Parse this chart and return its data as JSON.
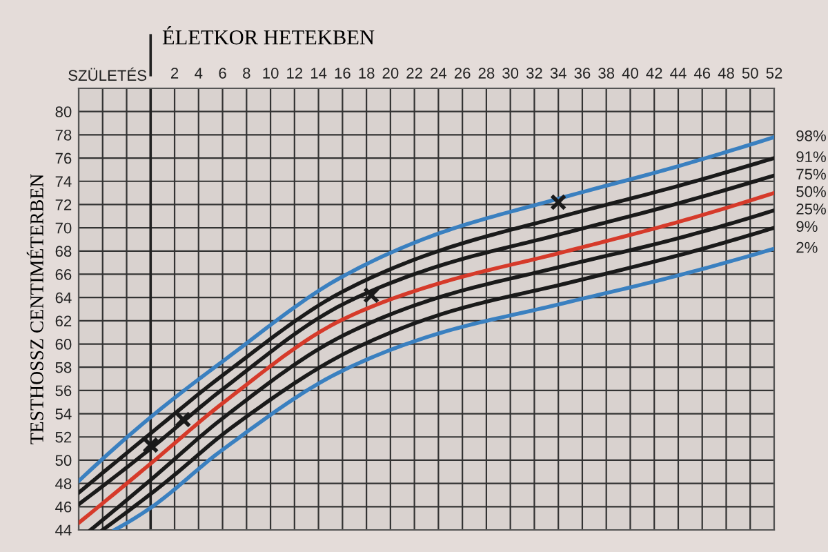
{
  "chart_data": {
    "type": "line",
    "xlabel": "ÉLETKOR HETEKBEN",
    "ylabel": "TESTHOSSZ CENTIMÉTERBEN",
    "xlim": [
      -6,
      52
    ],
    "ylim": [
      44,
      82
    ],
    "xticks": [
      {
        "value": -6,
        "label": null
      },
      {
        "value": -4,
        "label": null
      },
      {
        "value": -2,
        "label": null
      },
      {
        "value": 0,
        "label": null
      },
      2,
      4,
      6,
      8,
      10,
      12,
      14,
      16,
      18,
      20,
      22,
      24,
      26,
      28,
      30,
      32,
      34,
      36,
      38,
      40,
      42,
      44,
      46,
      48,
      50,
      52
    ],
    "yticks": [
      44,
      46,
      48,
      50,
      52,
      54,
      56,
      58,
      60,
      62,
      64,
      66,
      68,
      70,
      72,
      74,
      76,
      78,
      80,
      {
        "value": 82,
        "label": null
      }
    ],
    "grid": true,
    "legend": false,
    "ref_lines": [
      {
        "axis": "x",
        "value": 0,
        "label": "SZÜLETÉS",
        "color": "#222222"
      }
    ],
    "series": [
      {
        "name": "98%",
        "color": "#3a80c0",
        "x": [
          -6,
          0,
          6,
          16,
          24,
          34,
          44,
          52
        ],
        "values": [
          48.2,
          53.7,
          58.5,
          65.8,
          69.5,
          72.5,
          75.3,
          77.8
        ]
      },
      {
        "name": "91%",
        "color": "#1a1a1a",
        "x": [
          -6,
          0,
          6,
          16,
          24,
          34,
          44,
          52
        ],
        "values": [
          47.2,
          52.3,
          57.3,
          64.5,
          68.0,
          70.9,
          73.6,
          76.0
        ]
      },
      {
        "name": "75%",
        "color": "#1a1a1a",
        "x": [
          -6,
          0,
          6,
          16,
          24,
          34,
          44,
          52
        ],
        "values": [
          46.2,
          51.0,
          56.1,
          63.4,
          66.7,
          69.4,
          72.1,
          74.5
        ]
      },
      {
        "name": "50%",
        "color": "#d63a2a",
        "x": [
          -6,
          0,
          6,
          16,
          24,
          34,
          44,
          52
        ],
        "values": [
          44.6,
          49.7,
          54.9,
          62.1,
          65.2,
          67.8,
          70.5,
          73.0
        ]
      },
      {
        "name": "25%",
        "color": "#1a1a1a",
        "x": [
          -5,
          0,
          6,
          16,
          24,
          34,
          44,
          52
        ],
        "values": [
          44.0,
          48.3,
          53.6,
          60.7,
          64.0,
          66.6,
          69.1,
          71.5
        ]
      },
      {
        "name": "9%",
        "color": "#1a1a1a",
        "x": [
          -4,
          1,
          7,
          17,
          25,
          35,
          45,
          52
        ],
        "values": [
          44.0,
          47.9,
          53.0,
          59.6,
          62.8,
          65.3,
          67.9,
          70.0
        ]
      },
      {
        "name": "2%",
        "color": "#3a80c0",
        "x": [
          -3,
          0,
          6,
          16,
          24,
          34,
          44,
          52
        ],
        "values": [
          44.0,
          45.9,
          50.9,
          57.7,
          60.9,
          63.4,
          65.9,
          68.2
        ]
      },
      {
        "type": "scatter",
        "marker": "cross",
        "color": "#1a1a1a",
        "x": [
          0,
          2.7,
          18.4,
          34
        ],
        "values": [
          51.3,
          53.5,
          64.2,
          72.2
        ]
      }
    ]
  }
}
